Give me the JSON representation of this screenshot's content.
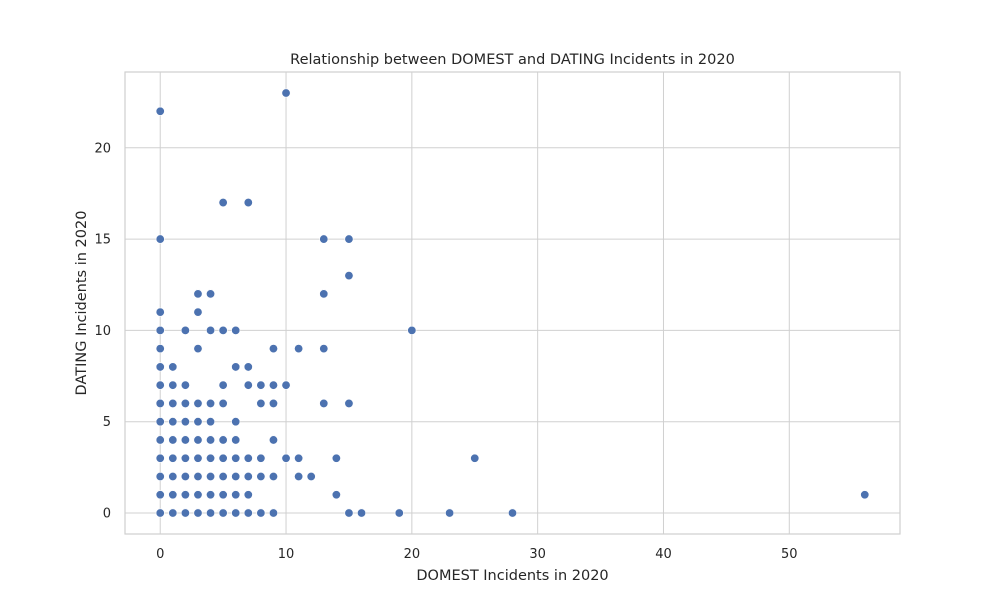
{
  "chart_data": {
    "type": "scatter",
    "title": "Relationship between DOMEST and DATING Incidents in 2020",
    "xlabel": "DOMEST Incidents in 2020",
    "ylabel": "DATING Incidents in 2020",
    "xlim": [
      -2.8,
      58.8
    ],
    "ylim": [
      -1.15,
      24.15
    ],
    "xticks": [
      0,
      10,
      20,
      30,
      40,
      50
    ],
    "yticks": [
      0,
      5,
      10,
      15,
      20
    ],
    "grid": true,
    "marker_color": "#4c72b0",
    "points": [
      [
        0,
        22
      ],
      [
        10,
        23
      ],
      [
        0,
        15
      ],
      [
        5,
        17
      ],
      [
        7,
        17
      ],
      [
        13,
        15
      ],
      [
        15,
        15
      ],
      [
        15,
        13
      ],
      [
        13,
        12
      ],
      [
        0,
        11
      ],
      [
        0,
        10
      ],
      [
        0,
        9
      ],
      [
        0,
        8
      ],
      [
        0,
        7
      ],
      [
        0,
        6
      ],
      [
        0,
        5
      ],
      [
        0,
        4
      ],
      [
        0,
        3
      ],
      [
        0,
        2
      ],
      [
        0,
        1
      ],
      [
        0,
        0
      ],
      [
        1,
        8
      ],
      [
        1,
        7
      ],
      [
        1,
        6
      ],
      [
        1,
        5
      ],
      [
        1,
        4
      ],
      [
        1,
        3
      ],
      [
        1,
        2
      ],
      [
        1,
        1
      ],
      [
        1,
        0
      ],
      [
        2,
        10
      ],
      [
        2,
        7
      ],
      [
        2,
        6
      ],
      [
        2,
        5
      ],
      [
        2,
        4
      ],
      [
        2,
        3
      ],
      [
        2,
        2
      ],
      [
        2,
        1
      ],
      [
        2,
        0
      ],
      [
        3,
        12
      ],
      [
        3,
        11
      ],
      [
        3,
        9
      ],
      [
        3,
        6
      ],
      [
        3,
        5
      ],
      [
        3,
        4
      ],
      [
        3,
        3
      ],
      [
        3,
        2
      ],
      [
        3,
        1
      ],
      [
        3,
        0
      ],
      [
        4,
        12
      ],
      [
        4,
        10
      ],
      [
        4,
        6
      ],
      [
        4,
        5
      ],
      [
        4,
        4
      ],
      [
        4,
        3
      ],
      [
        4,
        2
      ],
      [
        4,
        1
      ],
      [
        4,
        0
      ],
      [
        5,
        10
      ],
      [
        5,
        7
      ],
      [
        5,
        6
      ],
      [
        5,
        4
      ],
      [
        5,
        3
      ],
      [
        5,
        2
      ],
      [
        5,
        1
      ],
      [
        5,
        0
      ],
      [
        6,
        10
      ],
      [
        6,
        8
      ],
      [
        6,
        5
      ],
      [
        6,
        4
      ],
      [
        6,
        3
      ],
      [
        6,
        2
      ],
      [
        6,
        1
      ],
      [
        6,
        0
      ],
      [
        7,
        8
      ],
      [
        7,
        7
      ],
      [
        7,
        3
      ],
      [
        7,
        2
      ],
      [
        7,
        1
      ],
      [
        7,
        0
      ],
      [
        8,
        7
      ],
      [
        8,
        6
      ],
      [
        8,
        3
      ],
      [
        8,
        2
      ],
      [
        8,
        0
      ],
      [
        9,
        9
      ],
      [
        9,
        7
      ],
      [
        9,
        6
      ],
      [
        9,
        4
      ],
      [
        9,
        2
      ],
      [
        9,
        0
      ],
      [
        10,
        7
      ],
      [
        10,
        3
      ],
      [
        11,
        9
      ],
      [
        11,
        3
      ],
      [
        11,
        2
      ],
      [
        12,
        2
      ],
      [
        13,
        9
      ],
      [
        13,
        6
      ],
      [
        14,
        3
      ],
      [
        14,
        1
      ],
      [
        15,
        6
      ],
      [
        15,
        0
      ],
      [
        16,
        0
      ],
      [
        19,
        0
      ],
      [
        20,
        10
      ],
      [
        23,
        0
      ],
      [
        25,
        3
      ],
      [
        28,
        0
      ],
      [
        56,
        1
      ]
    ]
  }
}
